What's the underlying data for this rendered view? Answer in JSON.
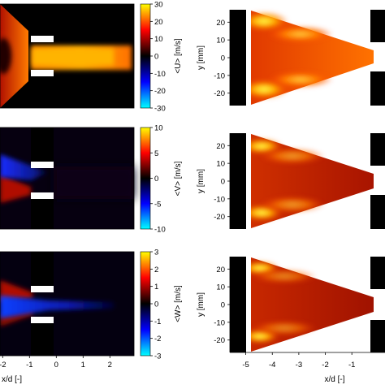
{
  "chart_data": [
    {
      "type": "heatmap",
      "panel": "left-top",
      "colorbar": {
        "label": "<U> [m/s]",
        "range": [
          -30,
          30
        ],
        "ticks": [
          "30",
          "20",
          "10",
          "0",
          "-10",
          "-20",
          "-30"
        ]
      },
      "x_ticks": [
        "-2",
        "-1",
        "0",
        "1",
        "2"
      ],
      "x_range": [
        -2.1,
        2.9
      ]
    },
    {
      "type": "heatmap",
      "panel": "left-middle",
      "colorbar": {
        "label": "<V> [m/s]",
        "range": [
          -10,
          10
        ],
        "ticks": [
          "10",
          "5",
          "0",
          "-5",
          "-10"
        ]
      },
      "x_ticks": [
        "-2",
        "-1",
        "0",
        "1",
        "2"
      ],
      "x_range": [
        -2.1,
        2.9
      ]
    },
    {
      "type": "heatmap",
      "panel": "left-bottom",
      "colorbar": {
        "label": "<W> [m/s]",
        "range": [
          -3,
          3
        ],
        "ticks": [
          "3",
          "2",
          "1",
          "0",
          "-1",
          "-2",
          "-3"
        ]
      },
      "x_ticks": [
        "-2",
        "-1",
        "0",
        "1",
        "2"
      ],
      "x_range": [
        -2.1,
        2.9
      ],
      "xlabel": "x/d [-]"
    },
    {
      "type": "heatmap",
      "panel": "right-top",
      "ylabel": "y [mm]",
      "y_ticks": [
        "20",
        "10",
        "0",
        "-10",
        "-20"
      ],
      "ylim": [
        -27,
        27
      ]
    },
    {
      "type": "heatmap",
      "panel": "right-middle",
      "ylabel": "y [mm]",
      "y_ticks": [
        "20",
        "10",
        "0",
        "-10",
        "-20"
      ],
      "ylim": [
        -27,
        27
      ]
    },
    {
      "type": "heatmap",
      "panel": "right-bottom",
      "ylabel": "y [mm]",
      "y_ticks": [
        "20",
        "10",
        "0",
        "-10",
        "-20"
      ],
      "ylim": [
        -27,
        27
      ],
      "x_ticks": [
        "-5",
        "-4",
        "-3",
        "-2",
        "-1"
      ],
      "x_range": [
        -5.6,
        0.25
      ],
      "xlabel": "x/d [-]"
    }
  ],
  "colormap_stops": [
    "#00ffff",
    "#0000ff",
    "#000000",
    "#ff0000",
    "#ffff00"
  ]
}
